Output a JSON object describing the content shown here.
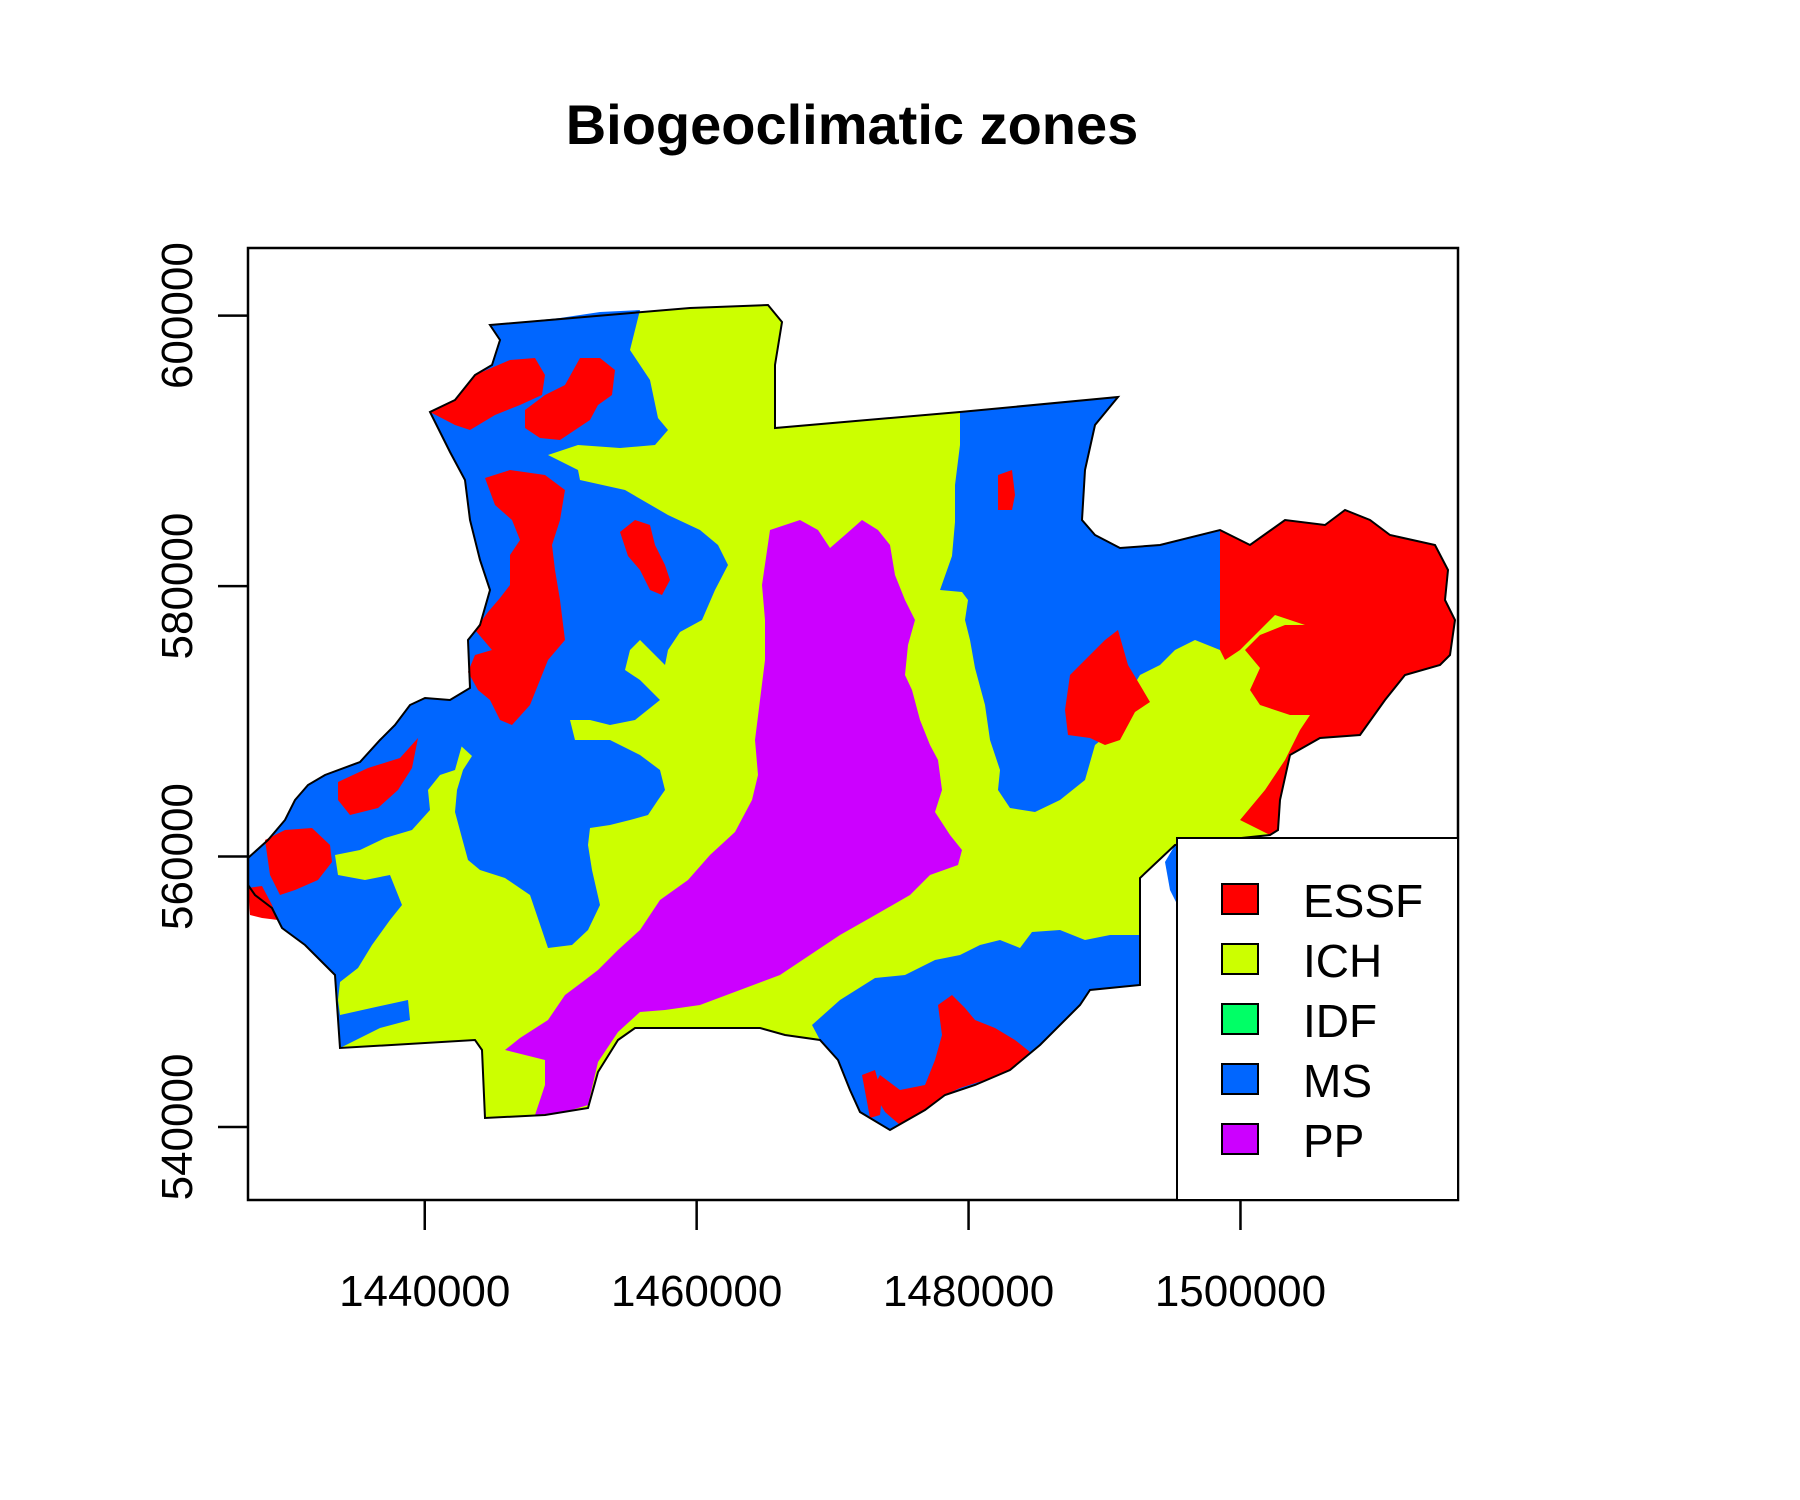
{
  "title": "Biogeoclimatic zones",
  "map_type": "categorical raster (biogeoclimatic zones)",
  "axes": {
    "x": {
      "range": [
        1427000,
        1516000
      ],
      "ticks": [
        1440000,
        1460000,
        1480000,
        1500000
      ],
      "tick_labels": [
        "1440000",
        "1460000",
        "1480000",
        "1500000"
      ]
    },
    "y": {
      "range": [
        534600,
        605000
      ],
      "ticks": [
        540000,
        560000,
        580000,
        600000
      ],
      "tick_labels": [
        "540000",
        "560000",
        "580000",
        "600000"
      ]
    }
  },
  "legend": {
    "position": "bottom-right",
    "entries": [
      {
        "name": "ESSF",
        "color": "#FF0000"
      },
      {
        "name": "ICH",
        "color": "#CCFF00"
      },
      {
        "name": "IDF",
        "color": "#00FF66"
      },
      {
        "name": "MS",
        "color": "#0066FF"
      },
      {
        "name": "PP",
        "color": "#CC00FF"
      }
    ]
  },
  "colors": {
    "ESSF": "#FF0000",
    "ICH": "#CCFF00",
    "IDF": "#00FF66",
    "MS": "#0066FF",
    "PP": "#CC00FF"
  }
}
